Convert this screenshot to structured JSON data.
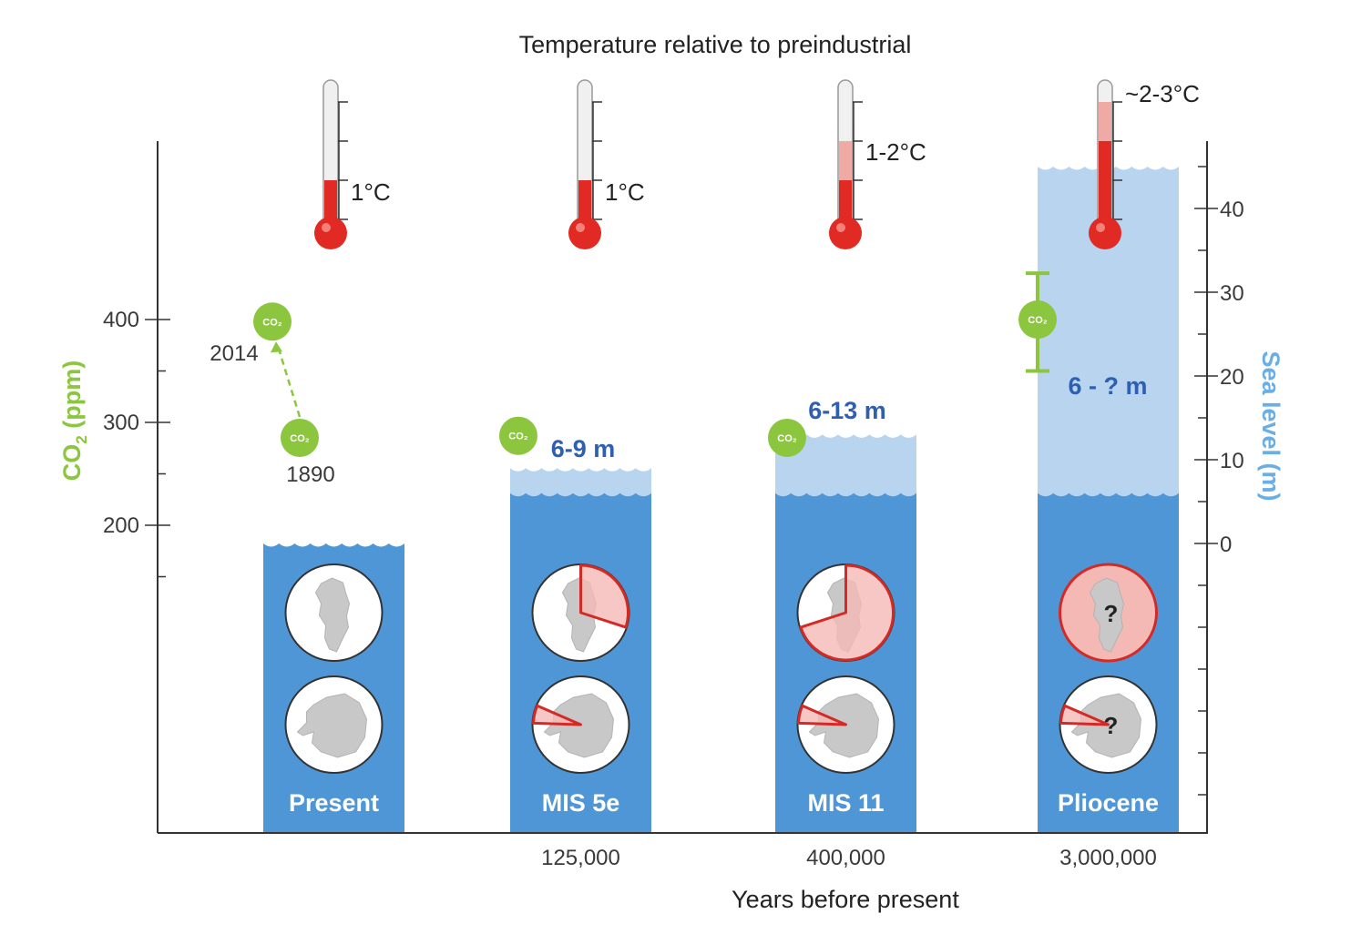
{
  "colors": {
    "co2": "#8cc63f",
    "sea_level_axis": "#6aaee6",
    "water_dark": "#4f96d6",
    "water_light": "#b8d4ef",
    "thermo_red": "#e12a23",
    "thermo_pink": "#f0aaa6",
    "ice_loss_fill": "#f4b9b5",
    "ice_loss_edge": "#d42a26",
    "sea_level_text": "#2f5fb3"
  },
  "chart_data": {
    "type": "bar",
    "title": "Temperature relative to preindustrial",
    "xlabel": "Years before present",
    "ylabel_left": {
      "main": "CO",
      "sub": "2",
      "rest": " (ppm)"
    },
    "ylabel_right": "Sea level (m)",
    "co2_axis": {
      "range": [
        0,
        430
      ],
      "tick_values": [
        200,
        300,
        400
      ],
      "minor_tick_values": [
        150,
        250,
        350
      ],
      "tick_labels": [
        "200",
        "300",
        "400"
      ]
    },
    "sea_level_axis": {
      "range": [
        -35,
        50
      ],
      "tick_values": [
        0,
        10,
        20,
        30,
        40
      ],
      "minor_step": 5,
      "tick_labels": [
        "0",
        "10",
        "20",
        "30",
        "40"
      ]
    },
    "co2_icon_label": "CO₂",
    "categories": [
      {
        "name": "Present",
        "years_label": "",
        "temperature_label": "1°C",
        "temp_low": 1,
        "temp_high": 1,
        "sea_level_min": 0,
        "sea_level_max": 0,
        "sea_level_label": "",
        "co2_points": [
          {
            "ppm": 285,
            "year_label": "1890"
          },
          {
            "ppm": 398,
            "year_label": "2014"
          }
        ],
        "greenland_ice_loss_fraction": 0,
        "antarctica_ice_loss_fraction": 0,
        "greenland_uncertain": false,
        "antarctica_uncertain": false
      },
      {
        "name": "MIS 5e",
        "years_label": "125,000",
        "temperature_label": "1°C",
        "temp_low": 1,
        "temp_high": 1,
        "sea_level_min": 6,
        "sea_level_max": 9,
        "sea_level_label": "6-9 m",
        "co2_points": [
          {
            "ppm": 287,
            "year_label": ""
          }
        ],
        "greenland_ice_loss_fraction": 0.3,
        "antarctica_ice_loss_fraction": 0.06,
        "greenland_uncertain": false,
        "antarctica_uncertain": false
      },
      {
        "name": "MIS 11",
        "years_label": "400,000",
        "temperature_label": "1-2°C",
        "temp_low": 1,
        "temp_high": 2,
        "sea_level_min": 6,
        "sea_level_max": 13,
        "sea_level_label": "6-13 m",
        "co2_points": [
          {
            "ppm": 285,
            "year_label": ""
          }
        ],
        "greenland_ice_loss_fraction": 0.7,
        "antarctica_ice_loss_fraction": 0.06,
        "greenland_uncertain": false,
        "antarctica_uncertain": false
      },
      {
        "name": "Pliocene",
        "years_label": "3,000,000",
        "temperature_label": "~2-3°C",
        "temp_low": 2,
        "temp_high": 3,
        "sea_level_min": 6,
        "sea_level_max": 45,
        "sea_level_label": "6 - ? m",
        "co2_points": [
          {
            "ppm": 400,
            "year_label": "",
            "err_low": 350,
            "err_high": 445
          }
        ],
        "greenland_ice_loss_fraction": 1,
        "antarctica_ice_loss_fraction": 0.06,
        "greenland_uncertain": true,
        "antarctica_uncertain": true
      }
    ],
    "unknown_marker": "?"
  }
}
